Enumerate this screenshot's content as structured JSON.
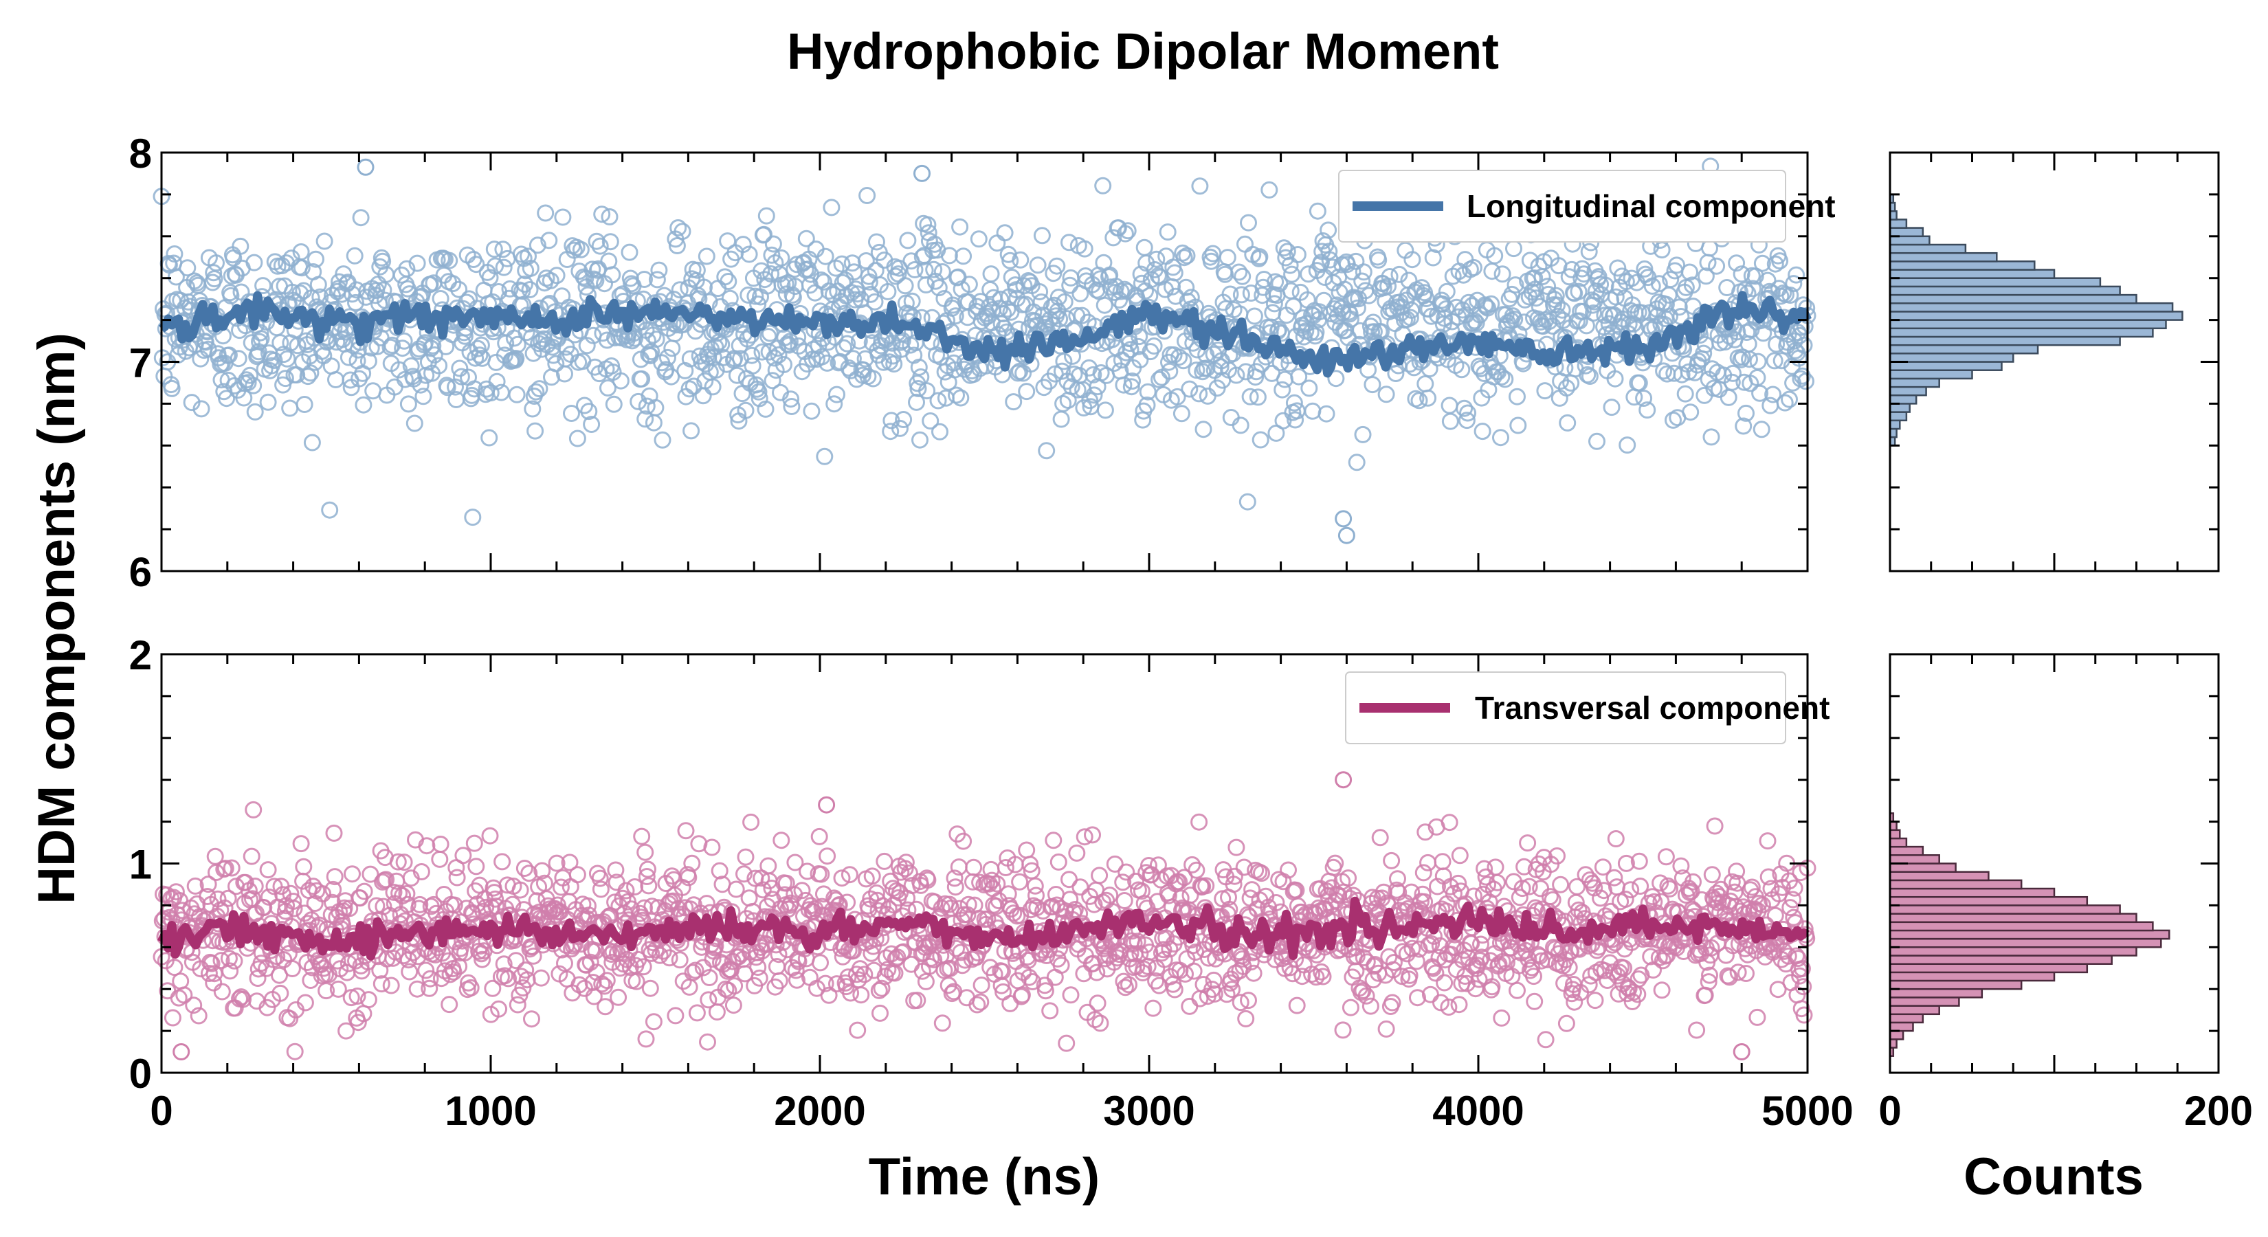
{
  "title": "Hydrophobic Dipolar Moment",
  "colors": {
    "longitudinal": "#4575a8",
    "longitudinal_light": "#8fb0d0",
    "transversal": "#a8306f",
    "transversal_light": "#d07fab",
    "long_hist_fill": "#9bb7d6",
    "trans_hist_fill": "#d592b5"
  },
  "chart_data": [
    {
      "type": "scatter",
      "panel": "longitudinal-trace",
      "xlabel": "Time (ns)",
      "ylabel": "HDM components (nm)",
      "xlim": [
        0,
        5000
      ],
      "ylim": [
        6,
        8
      ],
      "xticks": [
        "0",
        "1000",
        "2000",
        "3000",
        "4000",
        "5000"
      ],
      "yticks": [
        "6",
        "7",
        "8"
      ],
      "legend": {
        "label": "Longitudinal component",
        "placement": "top-right"
      },
      "series": [
        {
          "name": "Longitudinal component",
          "kind": "scatter",
          "mean": 7.18,
          "sd": 0.22,
          "x_range": [
            0,
            5000
          ],
          "outliers": [
            [
              620,
              7.93
            ],
            [
              2310,
              7.9
            ],
            [
              3590,
              6.25
            ],
            [
              3600,
              6.17
            ]
          ]
        },
        {
          "name": "Longitudinal component",
          "kind": "running-average-line",
          "x": [
            0,
            250,
            500,
            750,
            1000,
            1250,
            1500,
            1750,
            2000,
            2250,
            2500,
            2750,
            3000,
            3250,
            3500,
            3750,
            4000,
            4250,
            4500,
            4750,
            5000
          ],
          "y": [
            7.15,
            7.24,
            7.2,
            7.22,
            7.2,
            7.22,
            7.24,
            7.2,
            7.18,
            7.2,
            7.05,
            7.1,
            7.22,
            7.15,
            7.0,
            7.05,
            7.1,
            7.05,
            7.08,
            7.25,
            7.2
          ]
        }
      ]
    },
    {
      "type": "bar",
      "panel": "longitudinal-histogram",
      "orientation": "horizontal",
      "xlim": [
        0,
        200
      ],
      "ylim": [
        6,
        8
      ],
      "bin_edges": [
        6.6,
        6.64,
        6.68,
        6.72,
        6.76,
        6.8,
        6.84,
        6.88,
        6.92,
        6.96,
        7.0,
        7.04,
        7.08,
        7.12,
        7.16,
        7.2,
        7.24,
        7.28,
        7.32,
        7.36,
        7.4,
        7.44,
        7.48,
        7.52,
        7.56,
        7.6,
        7.64,
        7.68,
        7.72,
        7.76,
        7.8
      ],
      "counts": [
        3,
        4,
        6,
        10,
        12,
        16,
        22,
        30,
        50,
        68,
        75,
        90,
        140,
        160,
        168,
        178,
        172,
        150,
        140,
        128,
        100,
        88,
        65,
        46,
        24,
        20,
        10,
        4,
        3,
        2
      ]
    },
    {
      "type": "scatter",
      "panel": "transversal-trace",
      "xlabel": "Time (ns)",
      "ylabel": "HDM components (nm)",
      "xlim": [
        0,
        5000
      ],
      "ylim": [
        0,
        2
      ],
      "xticks": [
        "0",
        "1000",
        "2000",
        "3000",
        "4000",
        "5000"
      ],
      "yticks": [
        "0",
        "1",
        "2"
      ],
      "legend": {
        "label": "Transversal component",
        "placement": "top-right"
      },
      "series": [
        {
          "name": "Transversal component",
          "kind": "scatter",
          "mean": 0.68,
          "sd": 0.18,
          "x_range": [
            0,
            5000
          ],
          "outliers": [
            [
              60,
              0.1
            ],
            [
              2020,
              1.28
            ],
            [
              3590,
              1.4
            ],
            [
              4800,
              0.1
            ]
          ]
        },
        {
          "name": "Transversal component",
          "kind": "running-average-line",
          "x": [
            0,
            250,
            500,
            750,
            1000,
            1250,
            1500,
            1750,
            2000,
            2250,
            2500,
            2750,
            3000,
            3250,
            3500,
            3750,
            4000,
            4250,
            4500,
            4750,
            5000
          ],
          "y": [
            0.66,
            0.68,
            0.64,
            0.66,
            0.7,
            0.66,
            0.68,
            0.7,
            0.66,
            0.72,
            0.64,
            0.68,
            0.74,
            0.66,
            0.68,
            0.7,
            0.72,
            0.66,
            0.7,
            0.68,
            0.66
          ]
        }
      ]
    },
    {
      "type": "bar",
      "panel": "transversal-histogram",
      "orientation": "horizontal",
      "xlabel": "Counts",
      "xlim": [
        0,
        200
      ],
      "xticks": [
        "0",
        "200"
      ],
      "ylim": [
        0,
        2
      ],
      "bin_edges": [
        0.08,
        0.12,
        0.16,
        0.2,
        0.24,
        0.28,
        0.32,
        0.36,
        0.4,
        0.44,
        0.48,
        0.52,
        0.56,
        0.6,
        0.64,
        0.68,
        0.72,
        0.76,
        0.8,
        0.84,
        0.88,
        0.92,
        0.96,
        1.0,
        1.04,
        1.08,
        1.12,
        1.16,
        1.2,
        1.24
      ],
      "counts": [
        2,
        4,
        8,
        14,
        20,
        30,
        42,
        56,
        80,
        100,
        120,
        135,
        150,
        165,
        170,
        160,
        150,
        140,
        120,
        100,
        80,
        60,
        40,
        30,
        20,
        10,
        6,
        4,
        2
      ]
    }
  ]
}
